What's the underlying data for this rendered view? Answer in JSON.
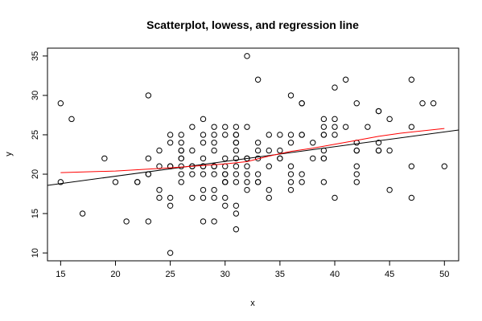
{
  "chart_data": {
    "type": "scatter",
    "title": "Scatterplot, lowess, and regression line",
    "xlabel": "x",
    "ylabel": "y",
    "xlim": [
      13.8,
      51.3
    ],
    "ylim": [
      9.0,
      36.0
    ],
    "xticks": [
      15,
      20,
      25,
      30,
      35,
      40,
      45,
      50
    ],
    "yticks": [
      10,
      15,
      20,
      25,
      30,
      35
    ],
    "grid": false,
    "points": {
      "x": [
        15,
        15,
        16,
        17,
        19,
        20,
        21,
        22,
        22,
        23,
        23,
        23,
        23,
        23,
        24,
        24,
        24,
        24,
        25,
        25,
        25,
        25,
        25,
        25,
        25,
        26,
        26,
        26,
        26,
        26,
        26,
        26,
        26,
        26,
        27,
        27,
        27,
        27,
        27,
        27,
        28,
        28,
        28,
        28,
        28,
        28,
        28,
        28,
        28,
        28,
        29,
        29,
        29,
        29,
        29,
        29,
        29,
        29,
        29,
        29,
        30,
        30,
        30,
        30,
        30,
        30,
        30,
        30,
        30,
        30,
        30,
        31,
        31,
        31,
        31,
        31,
        31,
        31,
        31,
        31,
        31,
        31,
        31,
        31,
        32,
        32,
        32,
        32,
        32,
        32,
        32,
        32,
        33,
        33,
        33,
        33,
        33,
        33,
        33,
        34,
        34,
        34,
        34,
        34,
        35,
        35,
        35,
        35,
        36,
        36,
        36,
        36,
        36,
        36,
        36,
        37,
        37,
        37,
        37,
        37,
        37,
        38,
        38,
        39,
        39,
        39,
        39,
        39,
        39,
        39,
        39,
        40,
        40,
        40,
        40,
        40,
        41,
        41,
        42,
        42,
        42,
        42,
        42,
        42,
        42,
        43,
        44,
        44,
        44,
        44,
        44,
        45,
        45,
        45,
        47,
        47,
        47,
        47,
        48,
        49,
        50
      ],
      "y": [
        29,
        19,
        27,
        15,
        22,
        19,
        14,
        19,
        19,
        30,
        22,
        20,
        14,
        20,
        23,
        21,
        18,
        17,
        25,
        24,
        21,
        17,
        16,
        10,
        21,
        25,
        24,
        23,
        22,
        23,
        22,
        21,
        20,
        19,
        26,
        23,
        21,
        21,
        20,
        17,
        27,
        25,
        24,
        22,
        21,
        21,
        20,
        18,
        17,
        14,
        26,
        25,
        24,
        23,
        21,
        21,
        20,
        18,
        17,
        14,
        26,
        25,
        22,
        21,
        20,
        20,
        19,
        19,
        17,
        16,
        19,
        26,
        25,
        25,
        24,
        24,
        23,
        22,
        21,
        20,
        19,
        16,
        15,
        13,
        35,
        26,
        22,
        21,
        20,
        19,
        18,
        22,
        32,
        24,
        23,
        22,
        20,
        19,
        19,
        25,
        23,
        21,
        18,
        17,
        25,
        23,
        22,
        22,
        30,
        25,
        24,
        21,
        19,
        18,
        20,
        29,
        29,
        25,
        25,
        20,
        19,
        24,
        22,
        27,
        26,
        25,
        25,
        23,
        22,
        22,
        19,
        31,
        27,
        26,
        25,
        17,
        32,
        26,
        29,
        24,
        23,
        23,
        21,
        20,
        19,
        26,
        28,
        28,
        24,
        23,
        23,
        27,
        23,
        18,
        32,
        26,
        21,
        17,
        29,
        29,
        21
      ]
    },
    "regression_line": {
      "intercept": 15.99,
      "slope": 0.1875
    },
    "lowess": {
      "x": [
        15,
        20,
        25,
        28,
        30,
        32,
        34,
        36,
        38,
        40,
        42,
        44,
        46,
        50
      ],
      "y": [
        20.2,
        20.4,
        20.8,
        21.1,
        21.3,
        21.6,
        22.3,
        22.9,
        23.3,
        23.8,
        24.3,
        24.8,
        25.2,
        25.8
      ]
    },
    "colors": {
      "points": "#000000",
      "regression": "#000000",
      "lowess": "#ff0000"
    }
  }
}
